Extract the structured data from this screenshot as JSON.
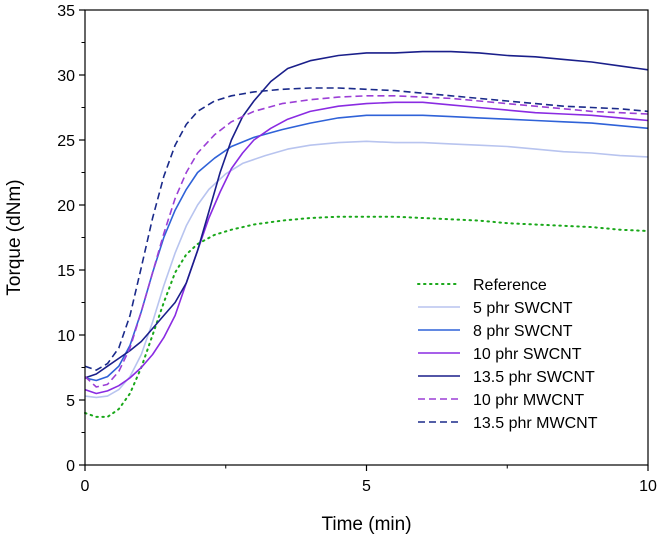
{
  "chart_data": {
    "type": "line",
    "title": "",
    "xlabel": "Time (min)",
    "ylabel": "Torque (dNm)",
    "xlim": [
      0,
      10
    ],
    "ylim": [
      0,
      35
    ],
    "xticks": [
      0,
      5,
      10
    ],
    "yticks": [
      0,
      5,
      10,
      15,
      20,
      25,
      30,
      35
    ],
    "grid": false,
    "legend_position": "bottom-right",
    "series": [
      {
        "name": "Reference",
        "style": "dotted",
        "color": "#1aa81a",
        "points": [
          [
            0.0,
            4.0
          ],
          [
            0.2,
            3.7
          ],
          [
            0.4,
            3.7
          ],
          [
            0.6,
            4.3
          ],
          [
            0.8,
            5.5
          ],
          [
            1.0,
            7.5
          ],
          [
            1.2,
            10.0
          ],
          [
            1.4,
            12.5
          ],
          [
            1.6,
            14.8
          ],
          [
            1.8,
            16.2
          ],
          [
            2.0,
            17.0
          ],
          [
            2.3,
            17.7
          ],
          [
            2.6,
            18.1
          ],
          [
            3.0,
            18.5
          ],
          [
            3.5,
            18.8
          ],
          [
            4.0,
            19.0
          ],
          [
            4.5,
            19.1
          ],
          [
            5.0,
            19.1
          ],
          [
            5.5,
            19.1
          ],
          [
            6.0,
            19.0
          ],
          [
            6.5,
            18.9
          ],
          [
            7.0,
            18.8
          ],
          [
            7.5,
            18.6
          ],
          [
            8.0,
            18.5
          ],
          [
            8.5,
            18.4
          ],
          [
            9.0,
            18.3
          ],
          [
            9.5,
            18.1
          ],
          [
            10.0,
            18.0
          ]
        ]
      },
      {
        "name": "5 phr SWCNT",
        "style": "solid",
        "color": "#b8c4ef",
        "points": [
          [
            0.0,
            5.3
          ],
          [
            0.2,
            5.2
          ],
          [
            0.4,
            5.3
          ],
          [
            0.6,
            5.8
          ],
          [
            0.8,
            6.8
          ],
          [
            1.0,
            8.5
          ],
          [
            1.2,
            11.0
          ],
          [
            1.4,
            13.8
          ],
          [
            1.6,
            16.3
          ],
          [
            1.8,
            18.4
          ],
          [
            2.0,
            20.0
          ],
          [
            2.2,
            21.2
          ],
          [
            2.5,
            22.4
          ],
          [
            2.8,
            23.2
          ],
          [
            3.2,
            23.8
          ],
          [
            3.6,
            24.3
          ],
          [
            4.0,
            24.6
          ],
          [
            4.5,
            24.8
          ],
          [
            5.0,
            24.9
          ],
          [
            5.5,
            24.8
          ],
          [
            6.0,
            24.8
          ],
          [
            6.5,
            24.7
          ],
          [
            7.0,
            24.6
          ],
          [
            7.5,
            24.5
          ],
          [
            8.0,
            24.3
          ],
          [
            8.5,
            24.1
          ],
          [
            9.0,
            24.0
          ],
          [
            9.5,
            23.8
          ],
          [
            10.0,
            23.7
          ]
        ]
      },
      {
        "name": "8 phr SWCNT",
        "style": "solid",
        "color": "#2f62d8",
        "points": [
          [
            0.0,
            6.7
          ],
          [
            0.2,
            6.5
          ],
          [
            0.4,
            6.8
          ],
          [
            0.6,
            7.6
          ],
          [
            0.8,
            9.2
          ],
          [
            1.0,
            11.8
          ],
          [
            1.2,
            14.8
          ],
          [
            1.4,
            17.5
          ],
          [
            1.6,
            19.6
          ],
          [
            1.8,
            21.2
          ],
          [
            2.0,
            22.5
          ],
          [
            2.3,
            23.6
          ],
          [
            2.6,
            24.5
          ],
          [
            3.0,
            25.2
          ],
          [
            3.5,
            25.8
          ],
          [
            4.0,
            26.3
          ],
          [
            4.5,
            26.7
          ],
          [
            5.0,
            26.9
          ],
          [
            5.5,
            26.9
          ],
          [
            6.0,
            26.9
          ],
          [
            6.5,
            26.8
          ],
          [
            7.0,
            26.7
          ],
          [
            7.5,
            26.6
          ],
          [
            8.0,
            26.5
          ],
          [
            8.5,
            26.4
          ],
          [
            9.0,
            26.3
          ],
          [
            9.5,
            26.1
          ],
          [
            10.0,
            25.9
          ]
        ]
      },
      {
        "name": "10 phr SWCNT",
        "style": "solid",
        "color": "#8a2be2",
        "points": [
          [
            0.0,
            5.8
          ],
          [
            0.2,
            5.5
          ],
          [
            0.4,
            5.7
          ],
          [
            0.6,
            6.1
          ],
          [
            0.8,
            6.7
          ],
          [
            1.0,
            7.5
          ],
          [
            1.2,
            8.5
          ],
          [
            1.4,
            9.8
          ],
          [
            1.6,
            11.5
          ],
          [
            1.8,
            14.0
          ],
          [
            2.0,
            16.5
          ],
          [
            2.2,
            19.0
          ],
          [
            2.4,
            21.0
          ],
          [
            2.6,
            22.8
          ],
          [
            2.8,
            24.0
          ],
          [
            3.0,
            25.0
          ],
          [
            3.3,
            25.9
          ],
          [
            3.6,
            26.6
          ],
          [
            4.0,
            27.2
          ],
          [
            4.5,
            27.6
          ],
          [
            5.0,
            27.8
          ],
          [
            5.5,
            27.9
          ],
          [
            6.0,
            27.9
          ],
          [
            6.5,
            27.7
          ],
          [
            7.0,
            27.5
          ],
          [
            7.5,
            27.3
          ],
          [
            8.0,
            27.1
          ],
          [
            8.5,
            27.0
          ],
          [
            9.0,
            26.9
          ],
          [
            9.5,
            26.7
          ],
          [
            10.0,
            26.5
          ]
        ]
      },
      {
        "name": "13.5 phr SWCNT",
        "style": "solid",
        "color": "#1a1f8a",
        "points": [
          [
            0.0,
            6.7
          ],
          [
            0.2,
            7.0
          ],
          [
            0.4,
            7.6
          ],
          [
            0.6,
            8.2
          ],
          [
            0.8,
            8.8
          ],
          [
            1.0,
            9.5
          ],
          [
            1.2,
            10.5
          ],
          [
            1.4,
            11.5
          ],
          [
            1.6,
            12.5
          ],
          [
            1.8,
            14.0
          ],
          [
            2.0,
            16.5
          ],
          [
            2.2,
            19.5
          ],
          [
            2.4,
            22.5
          ],
          [
            2.6,
            25.0
          ],
          [
            2.8,
            26.8
          ],
          [
            3.0,
            28.0
          ],
          [
            3.3,
            29.5
          ],
          [
            3.6,
            30.5
          ],
          [
            4.0,
            31.1
          ],
          [
            4.5,
            31.5
          ],
          [
            5.0,
            31.7
          ],
          [
            5.5,
            31.7
          ],
          [
            6.0,
            31.8
          ],
          [
            6.5,
            31.8
          ],
          [
            7.0,
            31.7
          ],
          [
            7.5,
            31.5
          ],
          [
            8.0,
            31.4
          ],
          [
            8.5,
            31.2
          ],
          [
            9.0,
            31.0
          ],
          [
            9.5,
            30.7
          ],
          [
            10.0,
            30.4
          ]
        ]
      },
      {
        "name": "10 phr MWCNT",
        "style": "dashed",
        "color": "#9b3fd6",
        "points": [
          [
            0.0,
            6.8
          ],
          [
            0.2,
            6.0
          ],
          [
            0.4,
            6.2
          ],
          [
            0.6,
            7.2
          ],
          [
            0.8,
            9.0
          ],
          [
            1.0,
            11.8
          ],
          [
            1.2,
            14.8
          ],
          [
            1.4,
            17.8
          ],
          [
            1.6,
            20.5
          ],
          [
            1.8,
            22.5
          ],
          [
            2.0,
            24.0
          ],
          [
            2.3,
            25.4
          ],
          [
            2.6,
            26.4
          ],
          [
            3.0,
            27.2
          ],
          [
            3.5,
            27.8
          ],
          [
            4.0,
            28.1
          ],
          [
            4.5,
            28.3
          ],
          [
            5.0,
            28.4
          ],
          [
            5.5,
            28.4
          ],
          [
            6.0,
            28.3
          ],
          [
            6.5,
            28.2
          ],
          [
            7.0,
            28.0
          ],
          [
            7.5,
            27.8
          ],
          [
            8.0,
            27.6
          ],
          [
            8.5,
            27.4
          ],
          [
            9.0,
            27.2
          ],
          [
            9.5,
            27.1
          ],
          [
            10.0,
            27.0
          ]
        ]
      },
      {
        "name": "13.5 phr MWCNT",
        "style": "dashed",
        "color": "#1a2a8a",
        "points": [
          [
            0.0,
            7.6
          ],
          [
            0.2,
            7.3
          ],
          [
            0.4,
            7.8
          ],
          [
            0.6,
            9.0
          ],
          [
            0.8,
            11.5
          ],
          [
            1.0,
            15.2
          ],
          [
            1.2,
            19.0
          ],
          [
            1.4,
            22.2
          ],
          [
            1.6,
            24.6
          ],
          [
            1.8,
            26.2
          ],
          [
            2.0,
            27.2
          ],
          [
            2.3,
            28.0
          ],
          [
            2.6,
            28.4
          ],
          [
            3.0,
            28.7
          ],
          [
            3.5,
            28.9
          ],
          [
            4.0,
            29.0
          ],
          [
            4.5,
            29.0
          ],
          [
            5.0,
            28.9
          ],
          [
            5.5,
            28.8
          ],
          [
            6.0,
            28.6
          ],
          [
            6.5,
            28.4
          ],
          [
            7.0,
            28.2
          ],
          [
            7.5,
            28.0
          ],
          [
            8.0,
            27.8
          ],
          [
            8.5,
            27.6
          ],
          [
            9.0,
            27.5
          ],
          [
            9.5,
            27.4
          ],
          [
            10.0,
            27.2
          ]
        ]
      }
    ]
  }
}
